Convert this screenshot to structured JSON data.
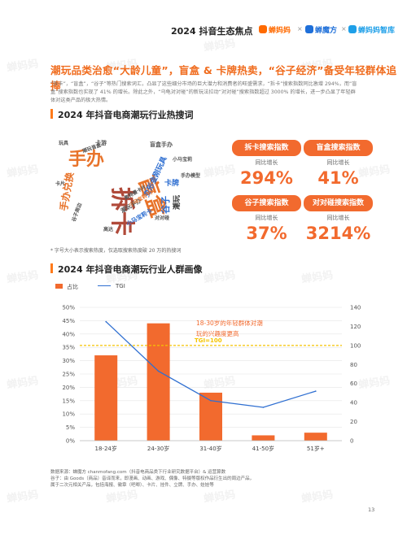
{
  "header": {
    "title": "2024 抖音生态焦点",
    "brand_1": "蝉妈妈",
    "separator": "×",
    "brand_2": "蝉魔方",
    "brand_3": "蝉妈妈智库",
    "brand_colors": {
      "brand_1": "#ff6a00",
      "brand_2": "#1e6fd9",
      "brand_3": "#1e9fe8"
    }
  },
  "watermark_text": "蝉妈妈",
  "headline": "潮玩品类治愈“大龄儿童”，盲盒 & 卡牌热卖，“谷子经济”备受年轻群体追捧",
  "intro": "“拆卡”，“盲盒”，“谷子”等热门搜索词汇，凸显了这些细分市场的巨大潜力和消费者的旺盛需求，“拆卡”搜索指数同比激增 294%，而“盲盒”搜索指数也实现了 41% 的增长。除此之外，“乌龟对对碰”的新玩法拉动“对对碰”搜索指数超过 3000% 的增长，进一步凸显了年轻群体对这类产品的极大热情。",
  "section1": {
    "title": "2024 年抖音电商潮玩行业热搜词"
  },
  "word_cloud": {
    "words": [
      "拆卡",
      "盲盒",
      "手办",
      "谷子",
      "潮玩",
      "手办兑换",
      "变形金刚玩具",
      "卡牌",
      "小马宝莉卡",
      "潮玩手办",
      "小马宝莉卡片",
      "奥特曼卡片",
      "卡游",
      "盲盒手办",
      "玩具",
      "谷子周边",
      "小马宝莉",
      "卡片",
      "潮玩盲盒",
      "对对碰",
      "手办模型",
      "高达"
    ]
  },
  "metrics": [
    {
      "label": "拆卡搜索指数",
      "sub": "同比增长",
      "value": "294%"
    },
    {
      "label": "盲盒搜索指数",
      "sub": "同比增长",
      "value": "41%"
    },
    {
      "label": "谷子搜索指数",
      "sub": "同比增长",
      "value": "37%"
    },
    {
      "label": "对对碰搜索指数",
      "sub": "同比增长",
      "value": "3214%"
    }
  ],
  "note": "* 字号大小表示搜索热度，仅选取搜索热度破 20 万的热搜词",
  "section2": {
    "title": "2024 年抖音电商潮玩行业人群画像"
  },
  "legend": {
    "bar_label": "占比",
    "line_label": "TGI"
  },
  "chart_data": {
    "type": "bar",
    "categories": [
      "18-24岁",
      "24-30岁",
      "31-40岁",
      "41-50岁",
      "51岁+"
    ],
    "series": [
      {
        "name": "占比",
        "type": "bar",
        "axis": "left",
        "values": [
          32,
          44,
          18,
          2,
          3
        ]
      },
      {
        "name": "TGI",
        "type": "line",
        "axis": "right",
        "values": [
          125,
          73,
          42,
          35,
          52
        ]
      }
    ],
    "ylim_left": [
      0,
      50
    ],
    "yticks_left": [
      "0%",
      "5%",
      "10%",
      "15%",
      "20%",
      "25%",
      "30%",
      "35%",
      "40%",
      "45%",
      "50%"
    ],
    "ylim_right": [
      0,
      140
    ],
    "yticks_right": [
      "0",
      "20",
      "40",
      "60",
      "80",
      "100",
      "120",
      "140"
    ],
    "reference_line": {
      "value": 100,
      "axis": "right",
      "label": "TGI=100"
    },
    "annotation": [
      "18-30岁的年轻群体对潮",
      "玩的兴趣度更高"
    ],
    "colors": {
      "bar": "#f26a2e",
      "line": "#2f6fd1",
      "reference": "#f5c400",
      "annotation": "#f26a2e"
    }
  },
  "source": {
    "line1": "数据来源：蝉魔方 chanmofang.com（抖音电商品类下行业研究数据平台）& 运营算数",
    "line2": "谷子：由 Goods（商品）音译而来，即漫画、动画、游戏、偶像、特摄等版权作品衍生出的周边产品，",
    "line3": "属于二次元相关产品，包括海报、徽章（吧唧）、卡片、挂件、立牌、手办、娃娃等"
  },
  "page_number": "13"
}
